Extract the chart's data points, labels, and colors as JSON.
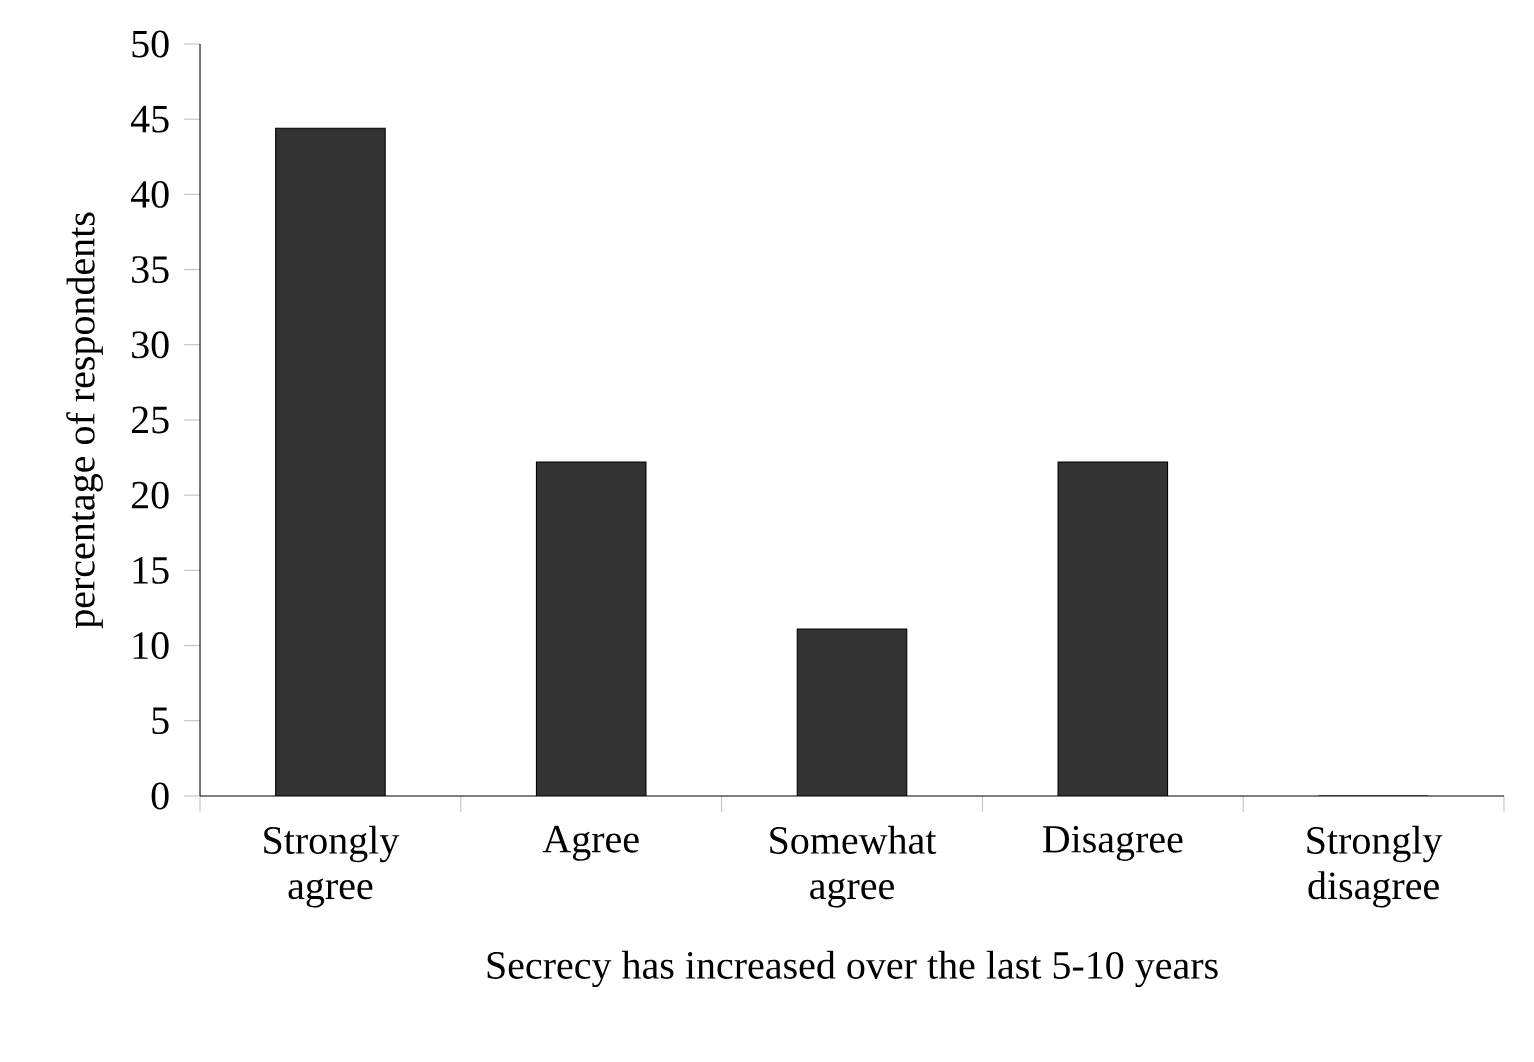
{
  "chart_data": {
    "type": "bar",
    "xlabel": "Secrecy has increased over the last 5-10 years",
    "ylabel": "percentage of respondents",
    "categories": [
      "Strongly agree",
      "Agree",
      "Somewhat agree",
      "Disagree",
      "Strongly disagree"
    ],
    "values": [
      44.4,
      22.2,
      11.1,
      22.2,
      0
    ],
    "color": "#333333",
    "ylim": [
      0,
      50
    ],
    "yticks": [
      0,
      5,
      10,
      15,
      20,
      25,
      30,
      35,
      40,
      45,
      50
    ]
  }
}
